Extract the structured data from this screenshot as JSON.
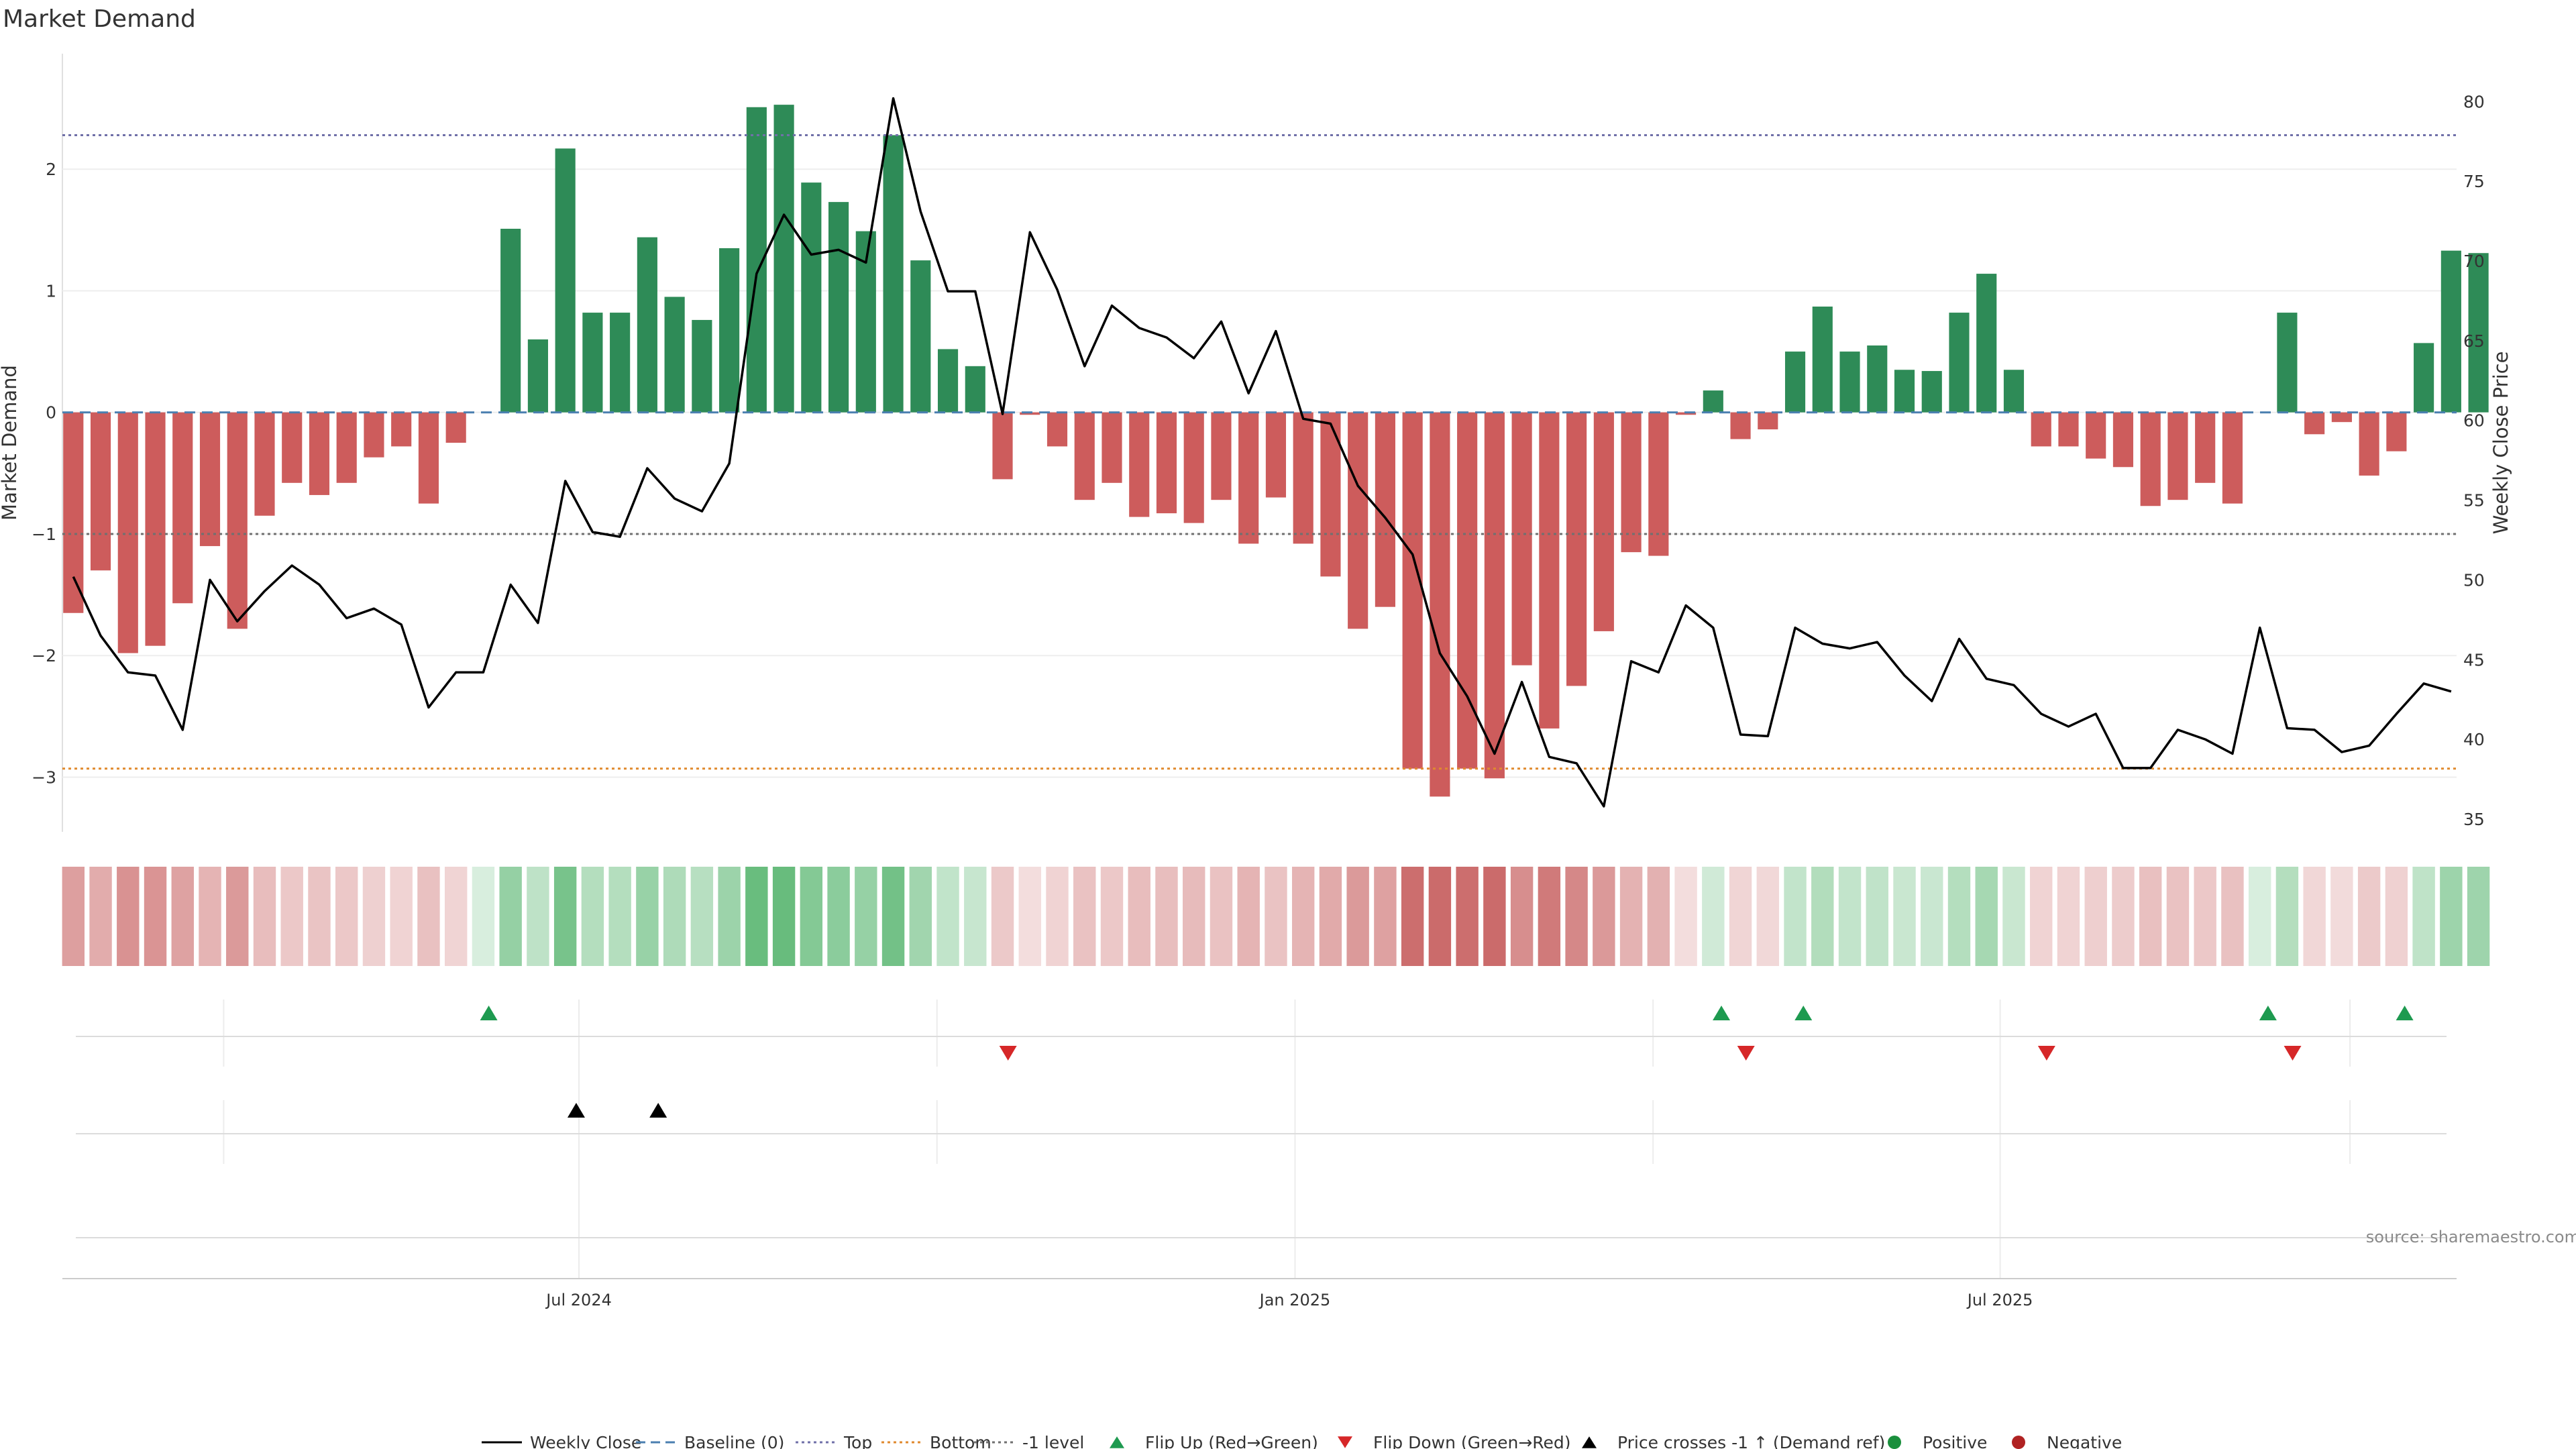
{
  "chart_data": {
    "type": "bar",
    "title": "Market Demand",
    "ylabel": "Market Demand",
    "y2label": "Weekly Close Price",
    "ylim": [
      -3.45,
      2.95
    ],
    "y2lim": [
      34.2,
      83.0
    ],
    "yticks": [
      -3,
      -2,
      -1,
      0,
      1,
      2
    ],
    "ytick_labels": [
      "−3",
      "−2",
      "−1",
      "0",
      "1",
      "2"
    ],
    "y2ticks": [
      35,
      40,
      45,
      50,
      55,
      60,
      65,
      70,
      75,
      80
    ],
    "ytick2_labels": [
      "35",
      "40",
      "45",
      "50",
      "55",
      "60",
      "65",
      "70",
      "75",
      "80"
    ],
    "xtick_labels": [
      {
        "label": "Jul 2024",
        "week": 18.5
      },
      {
        "label": "Jan 2025",
        "week": 44.7
      },
      {
        "label": "Jul 2025",
        "week": 70.5
      }
    ],
    "x_divider_weeks": [
      5.5,
      31.6,
      57.8,
      83.3
    ],
    "x_range": [
      -0.4,
      87.2
    ],
    "reference_lines": {
      "top": 2.28,
      "baseline": 0,
      "minus_one": -1,
      "bottom": -2.93
    },
    "demand": [
      -1.65,
      -1.3,
      -1.98,
      -1.92,
      -1.57,
      -1.1,
      -1.78,
      -0.85,
      -0.58,
      -0.68,
      -0.58,
      -0.37,
      -0.28,
      -0.75,
      -0.25,
      0,
      1.51,
      0.6,
      2.17,
      0.82,
      0.82,
      1.44,
      0.95,
      0.76,
      1.35,
      2.51,
      2.53,
      1.89,
      1.73,
      1.49,
      2.28,
      1.25,
      0.52,
      0.38,
      -0.55,
      -0.02,
      -0.28,
      -0.72,
      -0.58,
      -0.86,
      -0.83,
      -0.91,
      -0.72,
      -1.08,
      -0.7,
      -1.08,
      -1.35,
      -1.78,
      -1.6,
      -2.93,
      -3.16,
      -2.93,
      -3.01,
      -2.08,
      -2.6,
      -2.25,
      -1.8,
      -1.15,
      -1.18,
      -0.02,
      0.18,
      -0.22,
      -0.14,
      0.5,
      0.87,
      0.5,
      0.55,
      0.35,
      0.34,
      0.82,
      1.14,
      0.35,
      -0.28,
      -0.28,
      -0.38,
      -0.45,
      -0.77,
      -0.72,
      -0.58,
      -0.75,
      0,
      0.82,
      -0.18,
      -0.08,
      -0.52,
      -0.32,
      0.57,
      1.33,
      1.31
    ],
    "close": [
      50.2,
      46.5,
      44.2,
      44.0,
      40.6,
      50.0,
      47.4,
      49.3,
      50.9,
      49.7,
      47.6,
      48.2,
      47.2,
      42.0,
      44.2,
      44.2,
      49.7,
      47.3,
      56.2,
      53.0,
      52.7,
      57.0,
      55.1,
      54.3,
      57.3,
      69.2,
      72.9,
      70.4,
      70.7,
      69.9,
      80.2,
      73.1,
      68.1,
      68.1,
      60.4,
      71.8,
      68.2,
      63.4,
      67.2,
      65.8,
      65.2,
      63.9,
      66.2,
      61.7,
      65.6,
      60.1,
      59.8,
      55.9,
      53.9,
      51.6,
      45.4,
      42.7,
      39.1,
      43.6,
      38.9,
      38.5,
      35.8,
      44.9,
      44.2,
      48.4,
      47.0,
      40.3,
      40.2,
      47.0,
      46.0,
      45.7,
      46.1,
      44.0,
      42.4,
      46.3,
      43.8,
      43.4,
      41.6,
      40.8,
      41.6,
      38.2,
      38.2,
      40.6,
      40.0,
      39.1,
      47.0,
      40.7,
      40.6,
      39.2,
      39.6,
      41.6,
      43.5,
      43.0
    ],
    "flip_up_weeks": [
      15.2,
      60.3,
      63.3,
      80.3,
      85.3
    ],
    "flip_down_weeks": [
      34.2,
      61.2,
      72.2,
      81.2
    ],
    "price_cross_weeks": [
      18.4,
      21.4
    ],
    "colors": {
      "positive": "#2e8b57",
      "negative": "#cd5c5c",
      "line": "#000000",
      "baseline": "#4a7fb0",
      "top": "#7070a8",
      "bottom": "#e08a2e",
      "minus_one": "#707070",
      "flip_up": "#1e9a50",
      "flip_down": "#d62728",
      "positive_dot": "#1a8f3c",
      "negative_dot": "#b02222"
    },
    "legend": [
      {
        "label": "Weekly Close",
        "kind": "solid-line",
        "color": "#000000"
      },
      {
        "label": "Baseline (0)",
        "kind": "dashed-line",
        "color": "#4a7fb0"
      },
      {
        "label": "Top",
        "kind": "dotted-line",
        "color": "#7070a8"
      },
      {
        "label": "Bottom",
        "kind": "dotted-line",
        "color": "#e08a2e"
      },
      {
        "label": "-1 level",
        "kind": "dotted-line",
        "color": "#707070"
      },
      {
        "label": "Flip Up (Red→Green)",
        "kind": "triangle-up",
        "color": "#1e9a50"
      },
      {
        "label": "Flip Down (Green→Red)",
        "kind": "triangle-down",
        "color": "#d62728"
      },
      {
        "label": "Price crosses -1 ↑ (Demand ref)",
        "kind": "triangle-up",
        "color": "#000000"
      },
      {
        "label": "Positive",
        "kind": "dot",
        "color": "#1a8f3c"
      },
      {
        "label": "Negative",
        "kind": "dot",
        "color": "#b02222"
      }
    ],
    "legend_position": "bottom-center",
    "source": "source: sharemaestro.com"
  }
}
